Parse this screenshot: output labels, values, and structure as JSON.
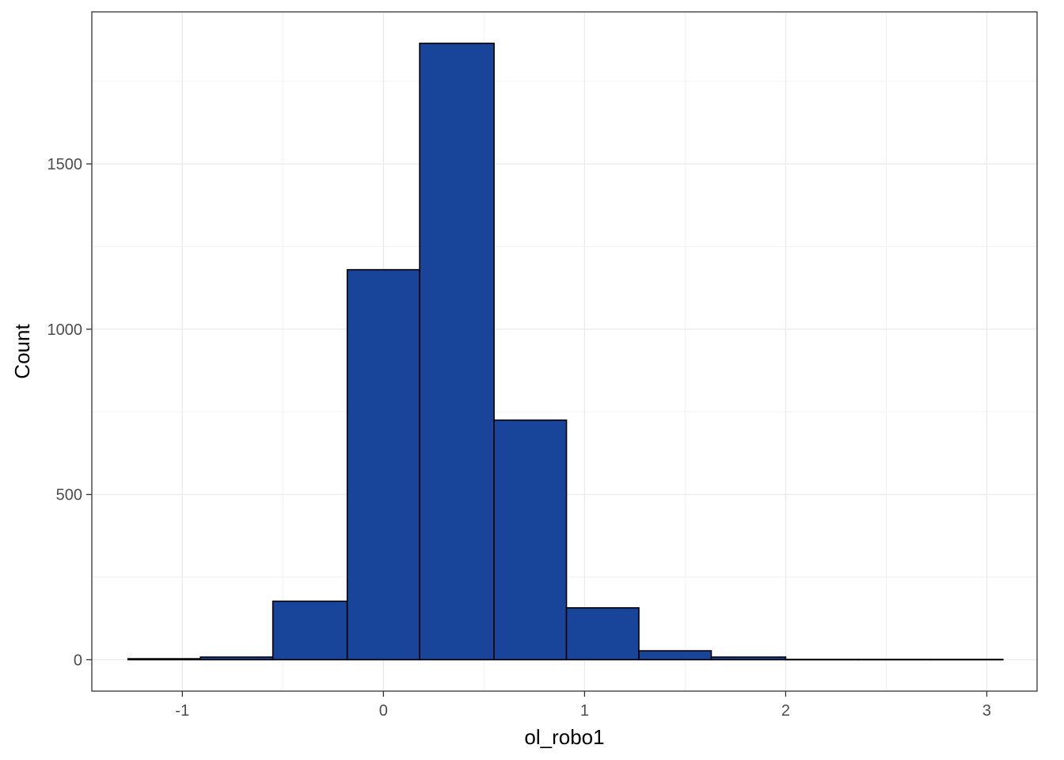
{
  "chart_data": {
    "type": "bar",
    "subtype": "histogram",
    "title": "",
    "xlabel": "ol_robo1",
    "ylabel": "Count",
    "xlim": [
      -1.45,
      3.25
    ],
    "ylim": [
      -95,
      1960
    ],
    "x_ticks": [
      -1,
      0,
      1,
      2,
      3
    ],
    "y_ticks": [
      0,
      500,
      1000,
      1500
    ],
    "grid": true,
    "legend": "none",
    "bins": [
      {
        "x0": -1.27,
        "x1": -0.91,
        "count": 3
      },
      {
        "x0": -0.91,
        "x1": -0.55,
        "count": 8
      },
      {
        "x0": -0.55,
        "x1": -0.18,
        "count": 177
      },
      {
        "x0": -0.18,
        "x1": 0.18,
        "count": 1180
      },
      {
        "x0": 0.18,
        "x1": 0.55,
        "count": 1865
      },
      {
        "x0": 0.55,
        "x1": 0.91,
        "count": 725
      },
      {
        "x0": 0.91,
        "x1": 1.27,
        "count": 157
      },
      {
        "x0": 1.27,
        "x1": 1.63,
        "count": 27
      },
      {
        "x0": 1.63,
        "x1": 2.0,
        "count": 8
      },
      {
        "x0": 2.0,
        "x1": 2.36,
        "count": 1
      },
      {
        "x0": 2.36,
        "x1": 2.72,
        "count": 1
      },
      {
        "x0": 2.72,
        "x1": 3.08,
        "count": 1
      }
    ],
    "colors": {
      "bar_fill": "#184599",
      "bar_stroke": "#000000",
      "grid_major": "#ebebeb",
      "grid_minor": "#f2f2f2",
      "panel_border": "#333333"
    }
  }
}
